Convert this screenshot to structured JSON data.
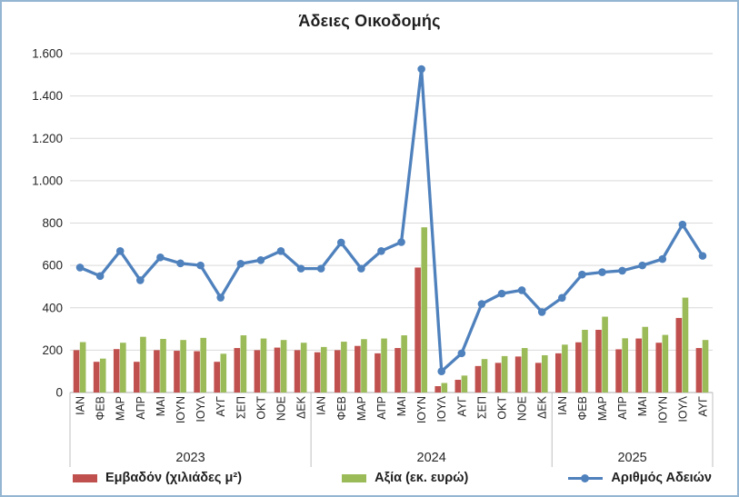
{
  "chart": {
    "title": "Άδειες Οικοδομής"
  },
  "chart_data": {
    "type": "combo-bar-line",
    "title": "Άδειες Οικοδομής",
    "grid": "horizontal",
    "legend_position": "bottom",
    "ylim": [
      0,
      1600
    ],
    "ytick_step": 200,
    "ytick_labels": [
      "0",
      "200",
      "400",
      "600",
      "800",
      "1.000",
      "1.200",
      "1.400",
      "1.600"
    ],
    "year_groups": [
      {
        "label": "2023",
        "months": [
          "ΙΑΝ",
          "ΦΕΒ",
          "ΜΑΡ",
          "ΑΠΡ",
          "ΜΑΙ",
          "ΙΟΥΝ",
          "ΙΟΥΛ",
          "ΑΥΓ",
          "ΣΕΠ",
          "ΟΚΤ",
          "ΝΟΕ",
          "ΔΕΚ"
        ]
      },
      {
        "label": "2024",
        "months": [
          "ΙΑΝ",
          "ΦΕΒ",
          "ΜΑΡ",
          "ΑΠΡ",
          "ΜΑΙ",
          "ΙΟΥΝ",
          "ΙΟΥΛ",
          "ΑΥΓ",
          "ΣΕΠ",
          "ΟΚΤ",
          "ΝΟΕ",
          "ΔΕΚ"
        ]
      },
      {
        "label": "2025",
        "months": [
          "ΙΑΝ",
          "ΦΕΒ",
          "ΜΑΡ",
          "ΑΠΡ",
          "ΜΑΙ",
          "ΙΟΥΝ",
          "ΙΟΥΛ",
          "ΑΥΓ"
        ]
      }
    ],
    "series": [
      {
        "name": "Εμβαδόν (χιλιάδες μ²)",
        "type": "bar",
        "color": "#C0504D",
        "values": [
          200,
          145,
          205,
          145,
          200,
          197,
          195,
          145,
          210,
          200,
          212,
          200,
          190,
          200,
          220,
          185,
          210,
          590,
          30,
          60,
          125,
          140,
          170,
          140,
          185,
          237,
          296,
          204,
          255,
          235,
          352,
          210
        ]
      },
      {
        "name": "Αξία (εκ. ευρώ)",
        "type": "bar",
        "color": "#9BBB59",
        "values": [
          238,
          160,
          235,
          263,
          253,
          248,
          258,
          183,
          270,
          255,
          248,
          235,
          215,
          240,
          252,
          255,
          270,
          780,
          45,
          80,
          158,
          172,
          210,
          176,
          226,
          296,
          358,
          256,
          310,
          272,
          448,
          248
        ]
      },
      {
        "name": "Αριθμός Αδειών",
        "type": "line",
        "color": "#4F81BD",
        "values": [
          590,
          550,
          668,
          530,
          638,
          610,
          600,
          448,
          608,
          625,
          668,
          585,
          585,
          708,
          585,
          668,
          710,
          1527,
          100,
          185,
          418,
          467,
          483,
          380,
          447,
          557,
          568,
          575,
          600,
          630,
          793,
          645
        ]
      }
    ],
    "colors": {
      "gridline": "#D9D9D9",
      "axis_line": "#BFBFBF",
      "text": "#262626",
      "frame_border": "#94B6D2"
    }
  }
}
